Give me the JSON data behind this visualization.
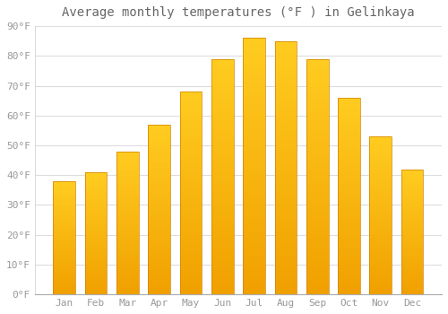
{
  "title": "Average monthly temperatures (°F ) in Gelinkaya",
  "months": [
    "Jan",
    "Feb",
    "Mar",
    "Apr",
    "May",
    "Jun",
    "Jul",
    "Aug",
    "Sep",
    "Oct",
    "Nov",
    "Dec"
  ],
  "values": [
    38,
    41,
    48,
    57,
    68,
    79,
    86,
    85,
    79,
    66,
    53,
    42
  ],
  "bar_color_top": "#FFC820",
  "bar_color_bottom": "#F0A000",
  "bar_edge_color": "#D08000",
  "background_color": "#FFFFFF",
  "grid_color": "#DDDDDD",
  "text_color": "#999999",
  "title_color": "#666666",
  "ylim": [
    0,
    90
  ],
  "ytick_step": 10,
  "title_fontsize": 10,
  "tick_fontsize": 8,
  "figsize": [
    5.0,
    3.5
  ],
  "dpi": 100
}
